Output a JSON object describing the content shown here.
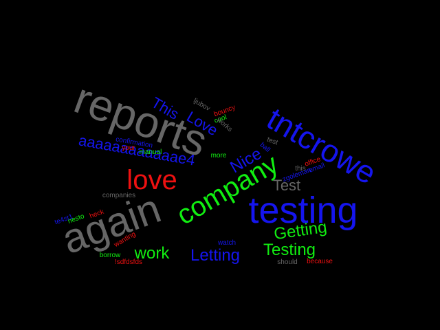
{
  "cloud": {
    "background": "#000000",
    "palette": {
      "gray": "#666666",
      "blue": "#1515ee",
      "red": "#ee1111",
      "green": "#11ee11"
    },
    "words": [
      {
        "text": "reports",
        "color": "#666666"
      },
      {
        "text": "tntcrowe",
        "color": "#1515ee"
      },
      {
        "text": "testing",
        "color": "#1515ee"
      },
      {
        "text": "again",
        "color": "#666666"
      },
      {
        "text": "company",
        "color": "#11ee11"
      },
      {
        "text": "love",
        "color": "#ee1111"
      },
      {
        "text": "aaaaaaaaaaaae4",
        "color": "#1515ee"
      },
      {
        "text": "This",
        "color": "#1515ee"
      },
      {
        "text": "Love",
        "color": "#1515ee"
      },
      {
        "text": "Nice",
        "color": "#1515ee"
      },
      {
        "text": "Test",
        "color": "#666666"
      },
      {
        "text": "Getting",
        "color": "#11ee11"
      },
      {
        "text": "Testing",
        "color": "#11ee11"
      },
      {
        "text": "work",
        "color": "#11ee11"
      },
      {
        "text": "Letting",
        "color": "#1515ee"
      },
      {
        "text": "ljubov",
        "color": "#666666"
      },
      {
        "text": "bouncy",
        "color": "#ee1111"
      },
      {
        "text": "cool",
        "color": "#11ee11"
      },
      {
        "text": "works",
        "color": "#666666"
      },
      {
        "text": "confirmation",
        "color": "#1515ee"
      },
      {
        "text": "your",
        "color": "#ee1111"
      },
      {
        "text": "manual",
        "color": "#11ee11"
      },
      {
        "text": "more",
        "color": "#11ee11"
      },
      {
        "text": "ball",
        "color": "#1515ee"
      },
      {
        "text": "test",
        "color": "#666666"
      },
      {
        "text": "office",
        "color": "#ee1111"
      },
      {
        "text": "email",
        "color": "#1515ee"
      },
      {
        "text": "this",
        "color": "#666666"
      },
      {
        "text": "zgoleman",
        "color": "#1515ee"
      },
      {
        "text": "companies",
        "color": "#666666"
      },
      {
        "text": "te4st1",
        "color": "#1515ee"
      },
      {
        "text": "nesto",
        "color": "#11ee11"
      },
      {
        "text": "heck",
        "color": "#ee1111"
      },
      {
        "text": "wanting",
        "color": "#ee1111"
      },
      {
        "text": "borrow",
        "color": "#11ee11"
      },
      {
        "text": "!sdfdsfds",
        "color": "#ee1111"
      },
      {
        "text": "watch",
        "color": "#1515ee"
      },
      {
        "text": "should",
        "color": "#666666"
      },
      {
        "text": "because",
        "color": "#ee1111"
      }
    ]
  }
}
